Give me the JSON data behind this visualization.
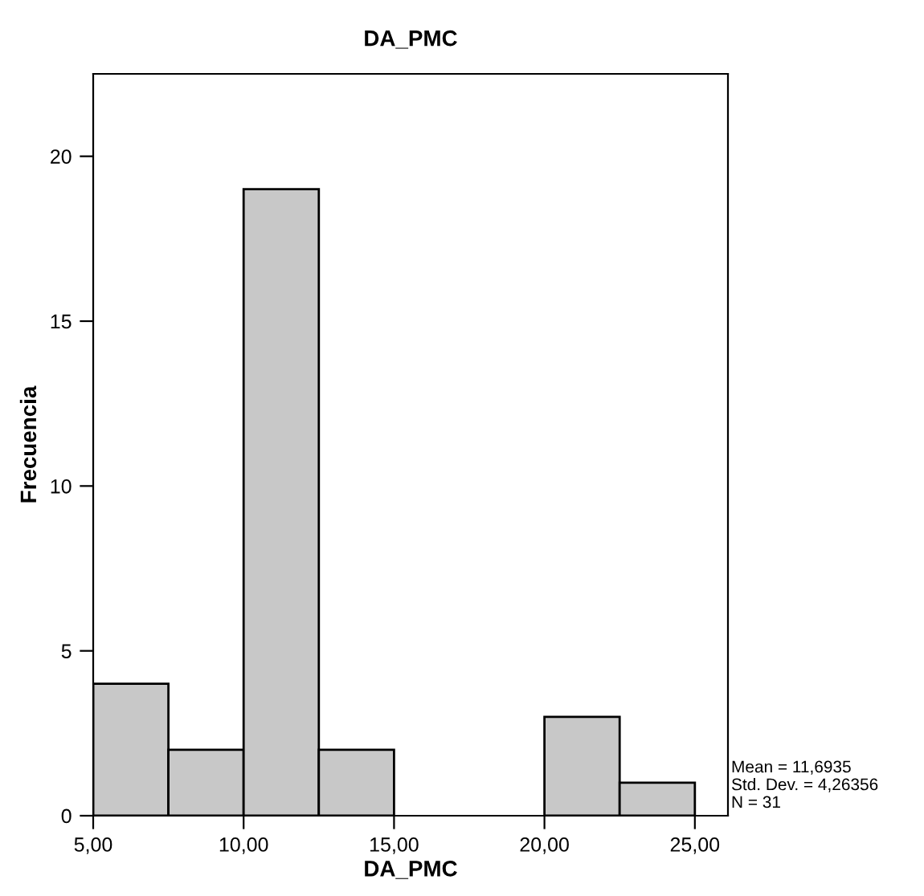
{
  "chart_data": {
    "type": "histogram",
    "title": "DA_PMC",
    "xlabel": "DA_PMC",
    "ylabel": "Frecuencia",
    "bins": [
      5,
      7.5,
      10,
      12.5,
      15,
      17.5,
      20,
      22.5,
      25
    ],
    "values": [
      4,
      2,
      19,
      2,
      0,
      0,
      3,
      1
    ],
    "color": "#c8c8c8",
    "xlim": [
      5,
      26.1
    ],
    "ylim": [
      0,
      22.5
    ],
    "xticks": [
      {
        "value": 5,
        "label": "5,00"
      },
      {
        "value": 10,
        "label": "10,00"
      },
      {
        "value": 15,
        "label": "15,00"
      },
      {
        "value": 20,
        "label": "20,00"
      },
      {
        "value": 25,
        "label": "25,00"
      }
    ],
    "yticks": [
      0,
      5,
      10,
      15,
      20
    ],
    "grid": false,
    "legend": false,
    "annotations": [
      "Mean = 11,6935",
      "Std. Dev. = 4,26356",
      "N = 31"
    ]
  }
}
